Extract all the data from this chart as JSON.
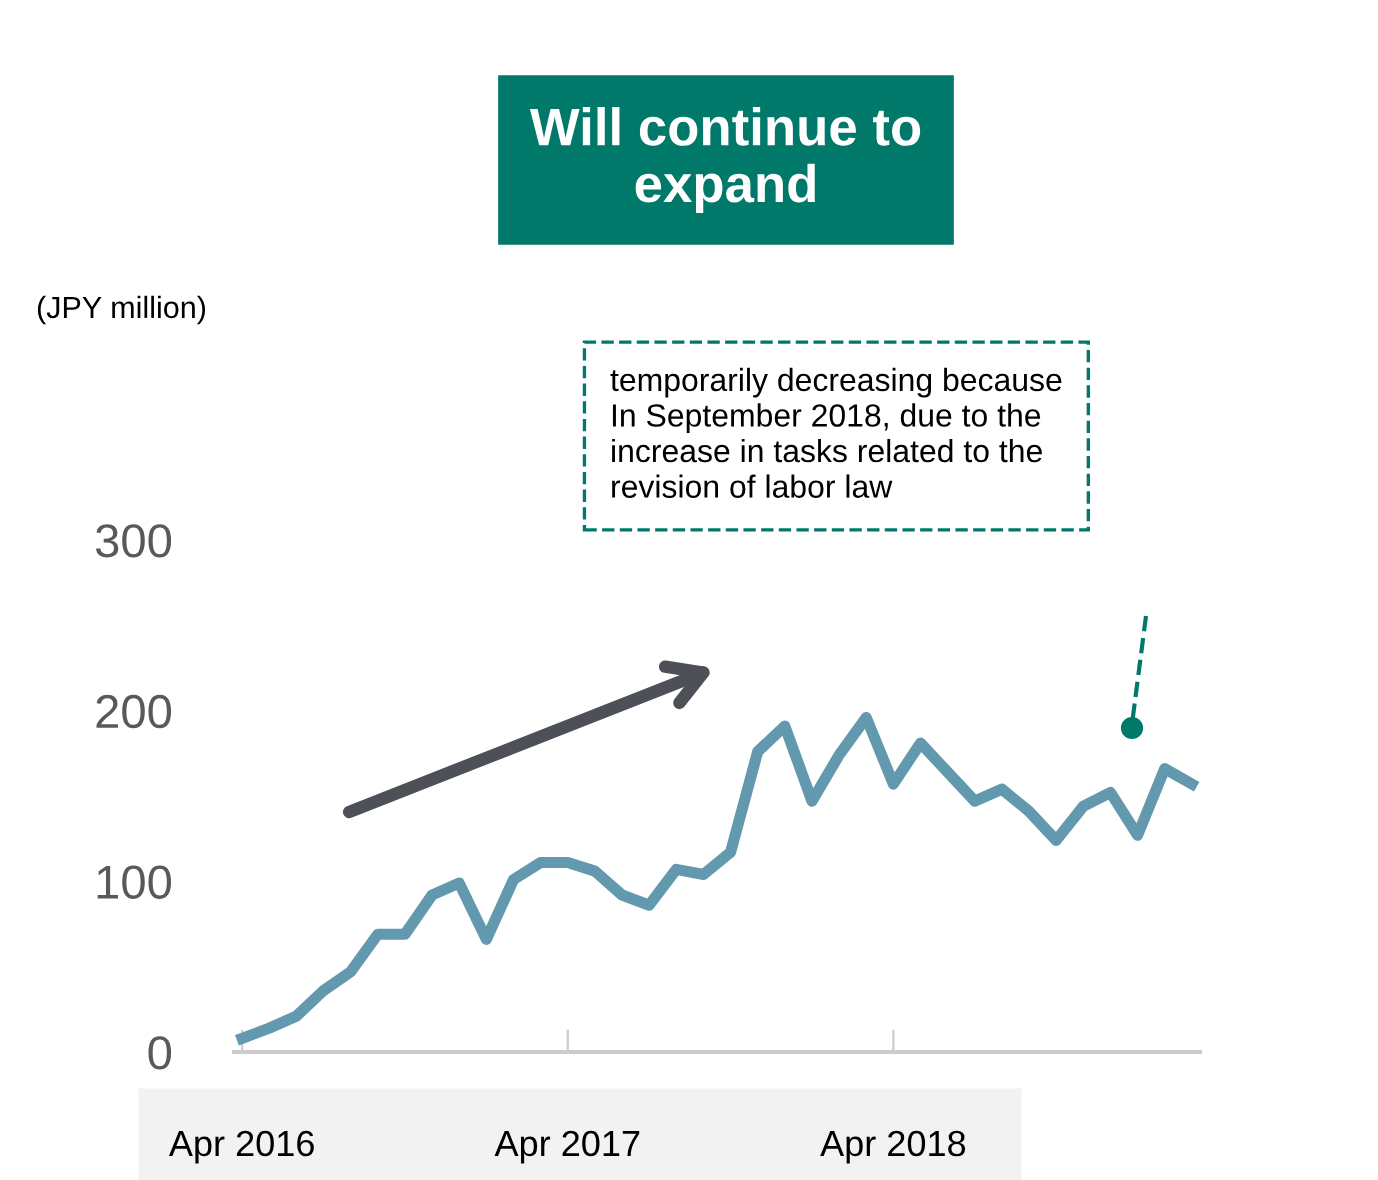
{
  "chart_data": {
    "type": "line",
    "title": "Will continue to\nexpand",
    "categories": [
      "Apr 2016",
      null,
      null,
      null,
      null,
      null,
      null,
      null,
      null,
      null,
      null,
      null,
      "Apr 2017",
      null,
      null,
      null,
      null,
      null,
      null,
      null,
      null,
      null,
      null,
      null,
      "Apr 2018",
      null,
      null,
      null,
      null,
      null,
      null,
      null,
      null,
      null,
      null,
      null
    ],
    "series": [
      {
        "color": "#6399ae",
        "values": [
          8,
          14,
          21,
          36,
          47,
          69,
          69,
          92,
          99,
          66,
          101,
          111,
          111,
          106,
          92,
          86,
          107,
          104,
          117,
          176,
          191,
          147,
          174,
          196,
          157,
          181,
          164,
          147,
          154,
          141,
          124,
          144,
          152,
          127,
          166,
          157
        ]
      }
    ],
    "ylim": [
      0,
      300
    ],
    "yticks": [
      0,
      100,
      200,
      300
    ],
    "grid": false,
    "legend": false,
    "marker": "none",
    "line_style": "solid",
    "annotations": [
      "(JPY million)",
      "temporarily decreasing because\nIn September 2018, due to the\nincrease in tasks related to the\nrevision of labor law"
    ]
  }
}
